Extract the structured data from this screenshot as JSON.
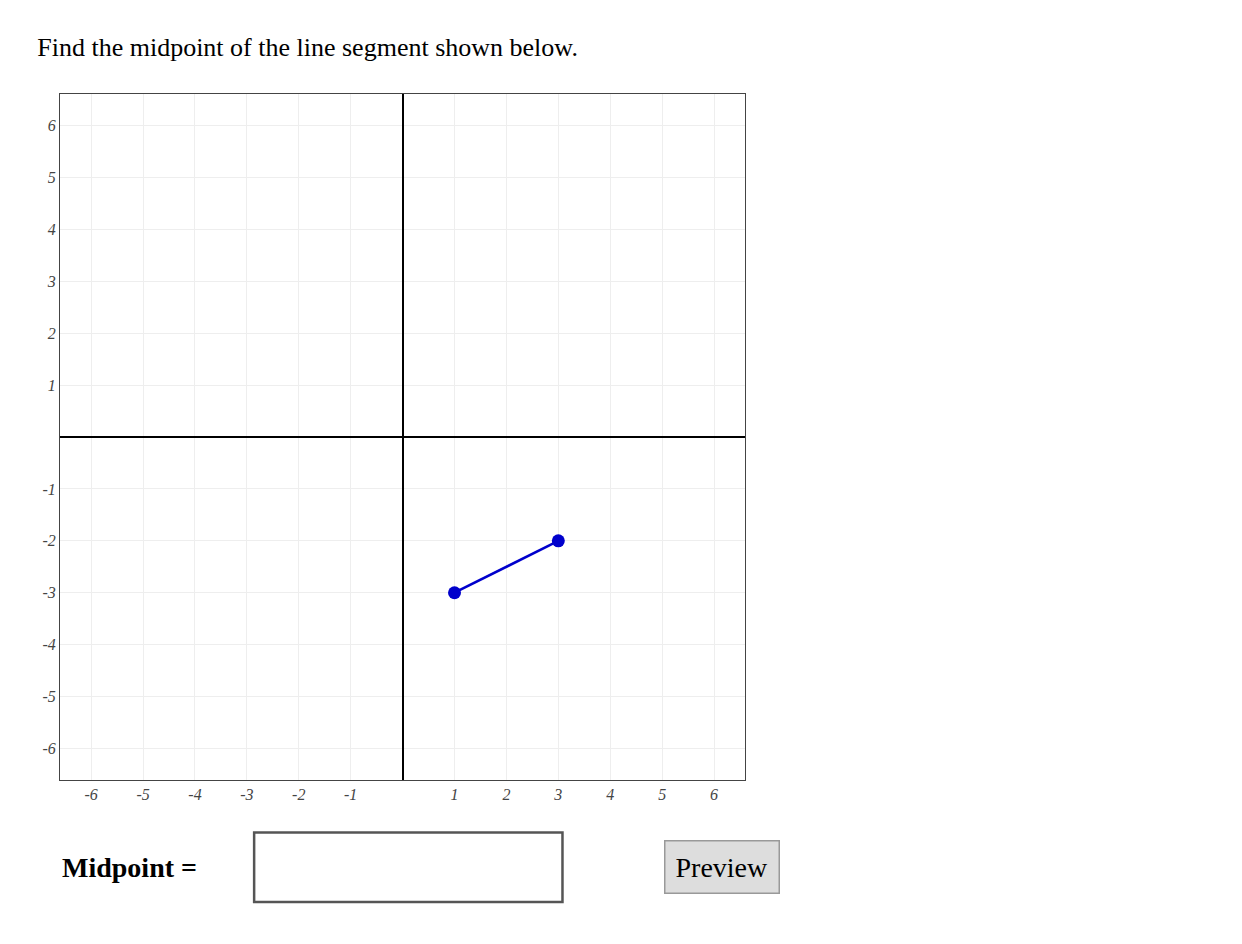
{
  "chart_data": {
    "type": "line",
    "title": "Find the midpoint of the line segment shown below.",
    "x": [
      1,
      3
    ],
    "values": [
      -3,
      -2
    ],
    "color": "#0000cc",
    "marker": "circle",
    "xlim": [
      -6.6,
      6.6
    ],
    "ylim": [
      -6.6,
      6.6
    ],
    "xticks": [
      -6,
      -5,
      -4,
      -3,
      -2,
      -1,
      1,
      2,
      3,
      4,
      5,
      6
    ],
    "yticks": [
      -6,
      -5,
      -4,
      -3,
      -2,
      -1,
      1,
      2,
      3,
      4,
      5,
      6
    ],
    "grid": true,
    "annotations": [
      "Midpoint =",
      "Preview"
    ]
  }
}
